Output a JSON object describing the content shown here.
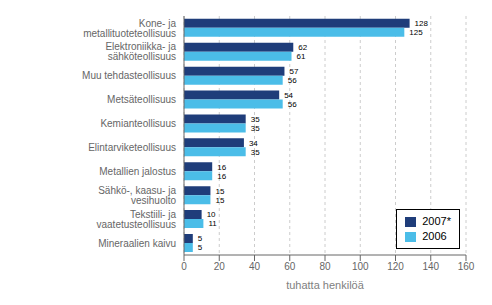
{
  "chart_data": {
    "type": "bar",
    "orientation": "horizontal",
    "categories": [
      "Mineraalien kaivu",
      "Tekstiili- ja vaatetusteollisuus",
      "Sähkö-, kaasu- ja vesihuolto",
      "Metallien jalostus",
      "Elintarviketeollisuus",
      "Kemianteollisuus",
      "Metsäteollisuus",
      "Muu tehdasteollisuus",
      "Elektroniikka- ja sähköteollisuus",
      "Kone- ja metallituoteteollisuus"
    ],
    "series": [
      {
        "name": "2007*",
        "color": "#1f3d7a",
        "values": [
          5,
          10,
          15,
          16,
          34,
          35,
          54,
          57,
          62,
          128
        ]
      },
      {
        "name": "2006",
        "color": "#4bbde8",
        "values": [
          5,
          11,
          15,
          16,
          35,
          35,
          56,
          56,
          61,
          125
        ]
      }
    ],
    "xlabel": "tuhatta henkilöä",
    "xlim": [
      0,
      160
    ],
    "xticks": [
      0,
      20,
      40,
      60,
      80,
      100,
      120,
      140,
      160
    ],
    "grid": true,
    "legend": "lower right",
    "data_labels": true
  }
}
